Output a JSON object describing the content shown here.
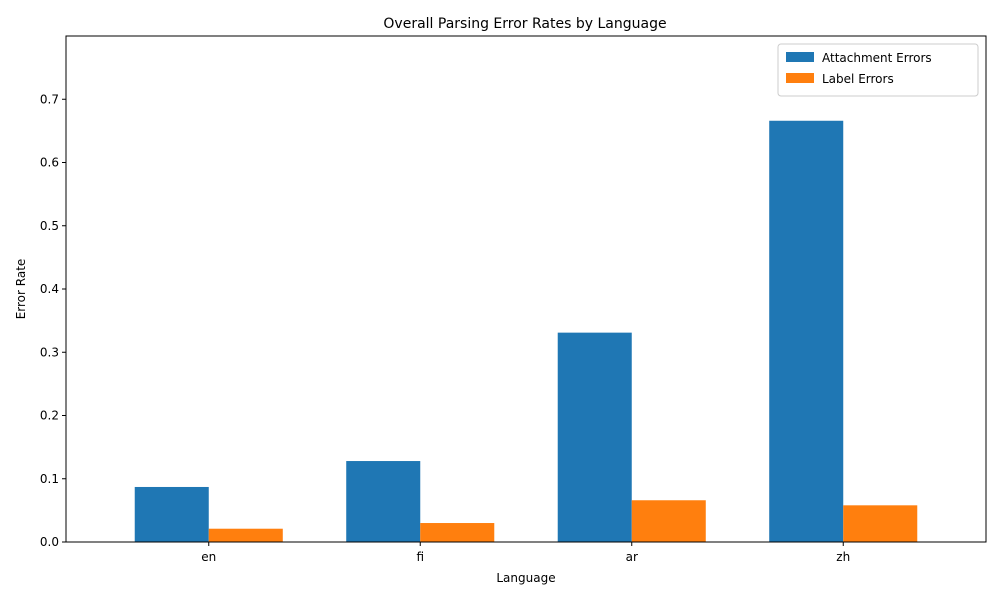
{
  "chart_data": {
    "type": "bar",
    "title": "Overall Parsing Error Rates by Language",
    "xlabel": "Language",
    "ylabel": "Error Rate",
    "categories": [
      "en",
      "fi",
      "ar",
      "zh"
    ],
    "series": [
      {
        "name": "Attachment Errors",
        "color": "#1f77b4",
        "values": [
          0.087,
          0.128,
          0.331,
          0.666
        ]
      },
      {
        "name": "Label Errors",
        "color": "#ff7f0e",
        "values": [
          0.021,
          0.03,
          0.066,
          0.058
        ]
      }
    ],
    "ylim": [
      0,
      0.8
    ],
    "yticks": [
      "0.0",
      "0.1",
      "0.2",
      "0.3",
      "0.4",
      "0.5",
      "0.6",
      "0.7"
    ],
    "grid": false,
    "legend_position": "top-right"
  }
}
